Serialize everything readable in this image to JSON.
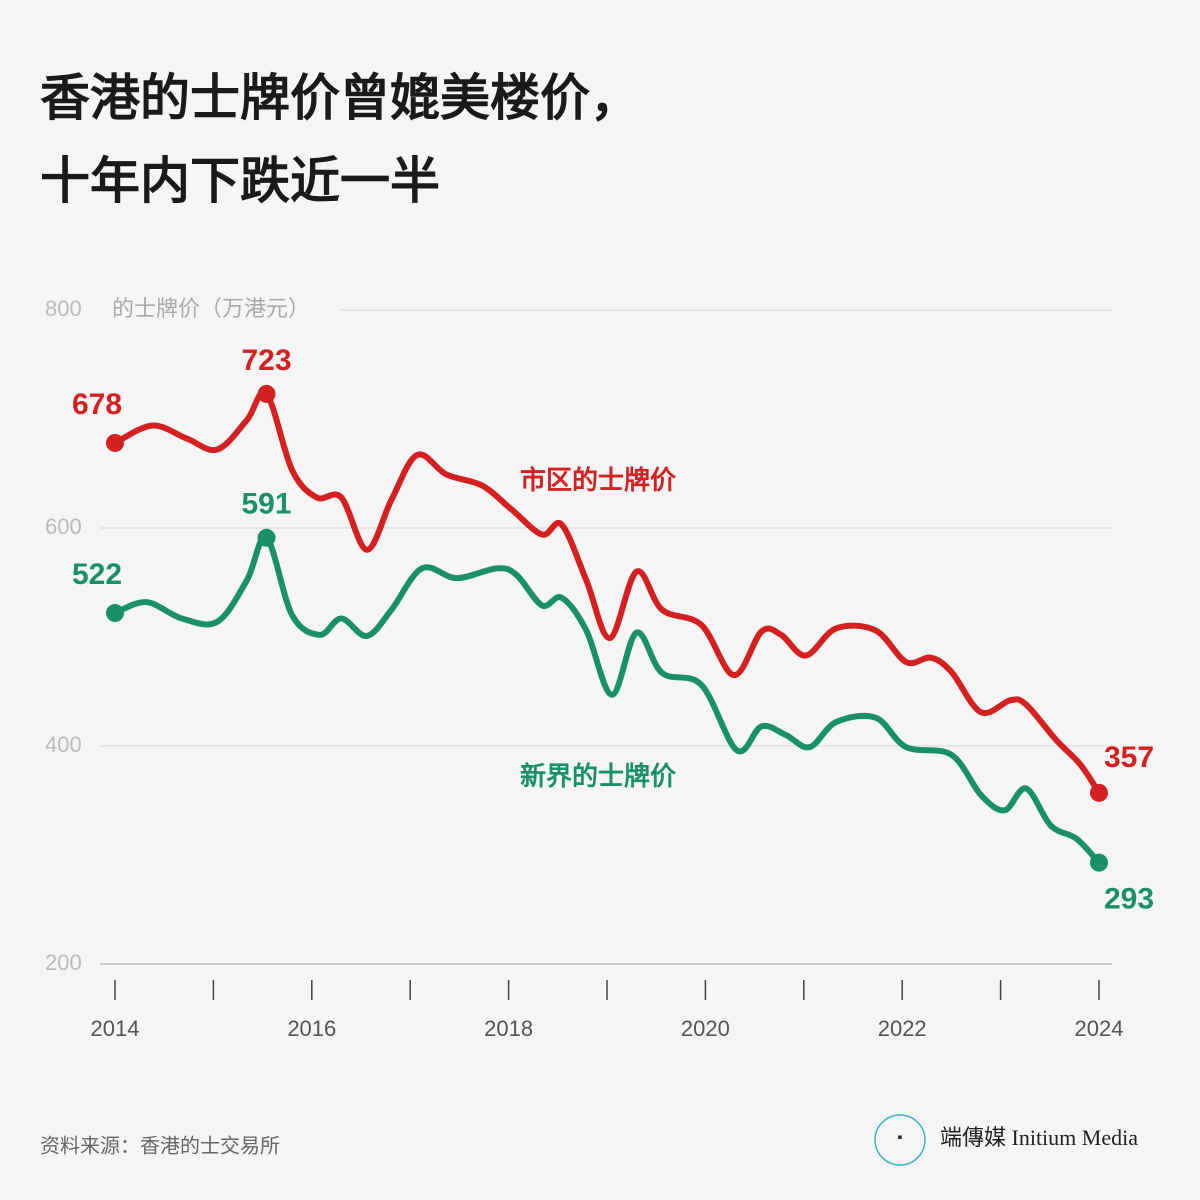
{
  "chart_data": {
    "type": "line",
    "title": [
      "香港的士牌价曾媲美楼价，",
      "十年内下跌近一半"
    ],
    "ylabel": "的士牌价（万港元）",
    "source": "资料来源：香港的士交易所",
    "brand": "端傳媒 Initium Media",
    "xlim": [
      2014,
      2024
    ],
    "xticks": [
      2014,
      2016,
      2018,
      2020,
      2022,
      2024
    ],
    "xminor_ticks": [
      2015,
      2017,
      2019,
      2021,
      2023
    ],
    "ylim": [
      200,
      800
    ],
    "yticks": [
      200,
      400,
      600,
      800
    ],
    "grid": true,
    "series": [
      {
        "name": "市区的士牌价",
        "color": "#d42020",
        "x": [
          2014,
          2014.38,
          2014.73,
          2015.04,
          2015.34,
          2015.54,
          2015.8,
          2016.05,
          2016.3,
          2016.56,
          2016.81,
          2017.07,
          2017.37,
          2017.73,
          2018.03,
          2018.34,
          2018.54,
          2018.79,
          2019.03,
          2019.3,
          2019.56,
          2019.96,
          2020.29,
          2020.57,
          2020.77,
          2021.02,
          2021.33,
          2021.73,
          2022.04,
          2022.29,
          2022.5,
          2022.8,
          2023.1,
          2023.26,
          2023.56,
          2023.81,
          2024
        ],
        "values": [
          678,
          694,
          682,
          672,
          699,
          723,
          653,
          628,
          628,
          580,
          626,
          667,
          649,
          639,
          617,
          594,
          603,
          552,
          499,
          560,
          525,
          511,
          465,
          505,
          502,
          483,
          508,
          506,
          477,
          481,
          468,
          431,
          442,
          438,
          406,
          383,
          357
        ]
      },
      {
        "name": "新界的士牌价",
        "color": "#1a9068",
        "x": [
          2014,
          2014.32,
          2014.68,
          2015.04,
          2015.34,
          2015.54,
          2015.8,
          2016.08,
          2016.3,
          2016.56,
          2016.81,
          2017.12,
          2017.47,
          2017.88,
          2018.08,
          2018.34,
          2018.54,
          2018.79,
          2019.05,
          2019.3,
          2019.56,
          2019.96,
          2020.32,
          2020.57,
          2020.82,
          2021.06,
          2021.33,
          2021.73,
          2022.04,
          2022.5,
          2022.8,
          2023.04,
          2023.26,
          2023.51,
          2023.77,
          2024
        ],
        "values": [
          522,
          532,
          517,
          514,
          552,
          591,
          520,
          502,
          517,
          501,
          525,
          563,
          554,
          563,
          557,
          529,
          536,
          506,
          447,
          504,
          467,
          456,
          396,
          418,
          410,
          399,
          422,
          426,
          399,
          392,
          355,
          341,
          361,
          327,
          315,
          293
        ]
      }
    ]
  }
}
